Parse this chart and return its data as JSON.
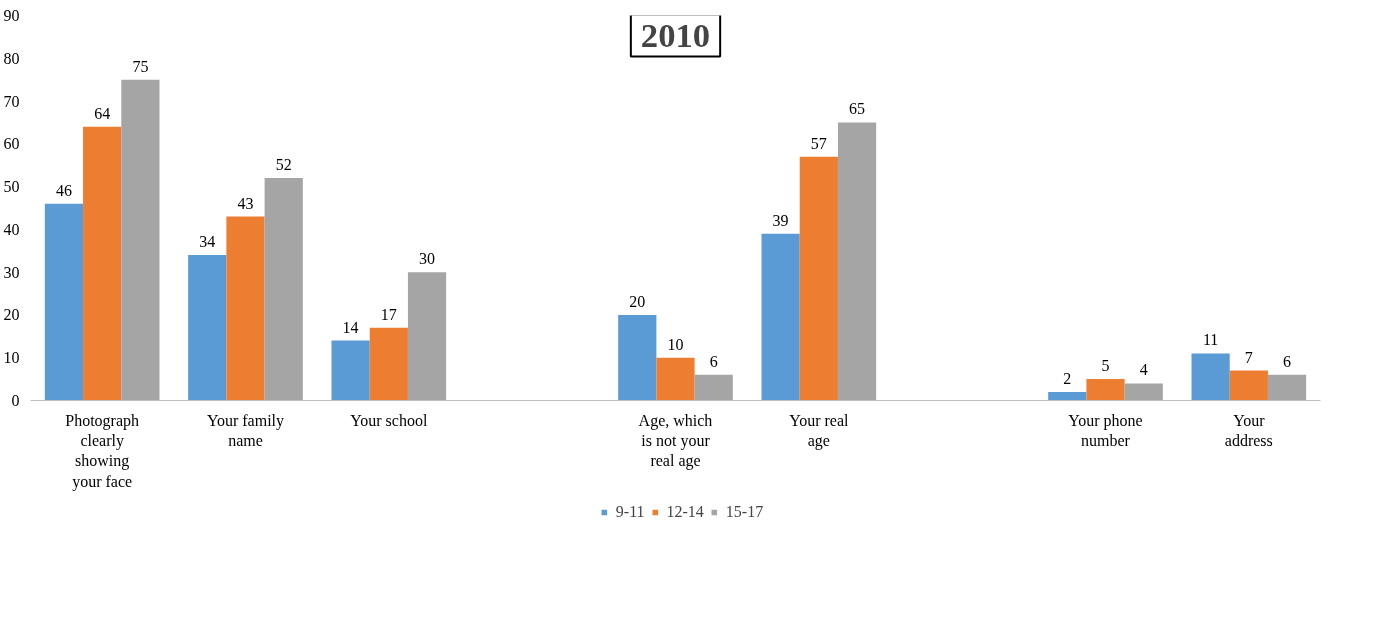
{
  "chart_data": {
    "type": "bar",
    "title": "2010",
    "categories": [
      "Photograph clearly showing your face",
      "Your family name",
      "Your school",
      null,
      "Age, which is not your real age",
      "Your real age",
      null,
      "Your phone number",
      "Your address"
    ],
    "series": [
      {
        "name": "9-11",
        "color": "#5b9bd5",
        "values": [
          46,
          34,
          14,
          null,
          20,
          39,
          null,
          2,
          11
        ]
      },
      {
        "name": "12-14",
        "color": "#ed7d31",
        "values": [
          64,
          43,
          17,
          null,
          10,
          57,
          null,
          5,
          7
        ]
      },
      {
        "name": "15-17",
        "color": "#a5a5a5",
        "values": [
          75,
          52,
          30,
          null,
          6,
          65,
          null,
          4,
          6
        ]
      }
    ],
    "ylim": [
      0,
      90
    ],
    "yticks": [
      0,
      10,
      20,
      30,
      40,
      50,
      60,
      70,
      80,
      90
    ],
    "data_labels": true,
    "legend": "bottom",
    "grid": false
  }
}
